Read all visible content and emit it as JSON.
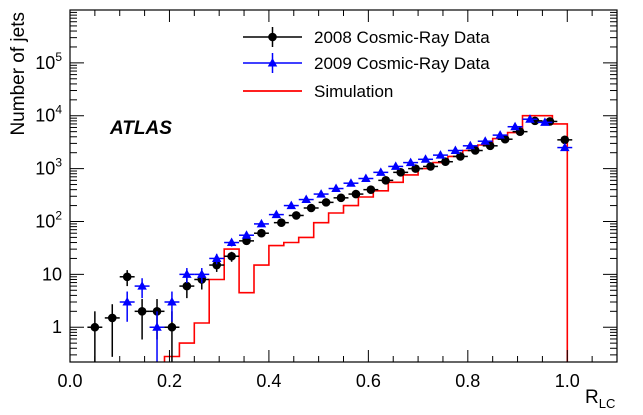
{
  "chart_data": {
    "type": "scatter",
    "title": "",
    "experiment_label": "ATLAS",
    "xlabel": "R",
    "xlabel_sub": "LC",
    "ylabel": "Number of jets",
    "xlim": [
      0.0,
      1.1
    ],
    "ylim": [
      0.22,
      1000000
    ],
    "yscale": "log",
    "grid": false,
    "legend_position": "top-center",
    "x_ticks": [
      {
        "value": 0.0,
        "label": "0.0"
      },
      {
        "value": 0.2,
        "label": "0.2"
      },
      {
        "value": 0.4,
        "label": "0.4"
      },
      {
        "value": 0.6,
        "label": "0.6"
      },
      {
        "value": 0.8,
        "label": "0.8"
      },
      {
        "value": 1.0,
        "label": "1.0"
      }
    ],
    "y_ticks": [
      {
        "value": 1,
        "label": "1"
      },
      {
        "value": 10,
        "label": "10"
      },
      {
        "value": 100,
        "label": "10",
        "exp": "2"
      },
      {
        "value": 1000,
        "label": "10",
        "exp": "3"
      },
      {
        "value": 10000,
        "label": "10",
        "exp": "4"
      },
      {
        "value": 100000,
        "label": "10",
        "exp": "5"
      }
    ],
    "series": [
      {
        "name": "2008 Cosmic-Ray Data",
        "color": "#000000",
        "marker": "circle",
        "x": [
          0.05,
          0.085,
          0.115,
          0.145,
          0.175,
          0.205,
          0.235,
          0.265,
          0.295,
          0.325,
          0.355,
          0.385,
          0.425,
          0.455,
          0.485,
          0.515,
          0.545,
          0.575,
          0.605,
          0.635,
          0.665,
          0.695,
          0.725,
          0.755,
          0.785,
          0.815,
          0.845,
          0.875,
          0.905,
          0.935,
          0.965,
          0.995
        ],
        "values": [
          1.0,
          1.5,
          9.0,
          2.0,
          2.0,
          1.0,
          6.0,
          8.0,
          15,
          22,
          43,
          60,
          95,
          130,
          180,
          230,
          280,
          330,
          400,
          600,
          850,
          1000,
          1100,
          1350,
          1700,
          2200,
          2700,
          3600,
          5000,
          8000,
          7800,
          3500
        ]
      },
      {
        "name": "2009 Cosmic-Ray Data",
        "color": "#0000ff",
        "marker": "triangle",
        "x": [
          0.115,
          0.145,
          0.175,
          0.205,
          0.235,
          0.265,
          0.295,
          0.325,
          0.355,
          0.385,
          0.415,
          0.445,
          0.475,
          0.505,
          0.535,
          0.565,
          0.595,
          0.625,
          0.655,
          0.685,
          0.715,
          0.745,
          0.775,
          0.805,
          0.835,
          0.865,
          0.895,
          0.925,
          0.955,
          0.995
        ],
        "values": [
          3.0,
          6.0,
          1.0,
          3.0,
          10.0,
          10.0,
          20,
          40,
          55,
          90,
          135,
          200,
          260,
          330,
          420,
          530,
          650,
          850,
          1100,
          1300,
          1500,
          1800,
          2200,
          2700,
          3300,
          4300,
          6200,
          8600,
          7500,
          2500
        ]
      },
      {
        "name": "Simulation",
        "color": "#ff0000",
        "marker": "step",
        "bin_edges": [
          0.19,
          0.22,
          0.25,
          0.28,
          0.31,
          0.34,
          0.37,
          0.4,
          0.43,
          0.46,
          0.49,
          0.52,
          0.55,
          0.58,
          0.61,
          0.64,
          0.67,
          0.7,
          0.73,
          0.76,
          0.79,
          0.82,
          0.85,
          0.88,
          0.91,
          0.94,
          0.97,
          1.0
        ],
        "values": [
          0.28,
          0.5,
          1.2,
          8,
          30,
          4.5,
          15,
          35,
          40,
          50,
          95,
          145,
          200,
          290,
          380,
          550,
          760,
          1000,
          1300,
          1700,
          2200,
          2800,
          3700,
          4800,
          10000,
          10000,
          7000
        ]
      }
    ]
  }
}
